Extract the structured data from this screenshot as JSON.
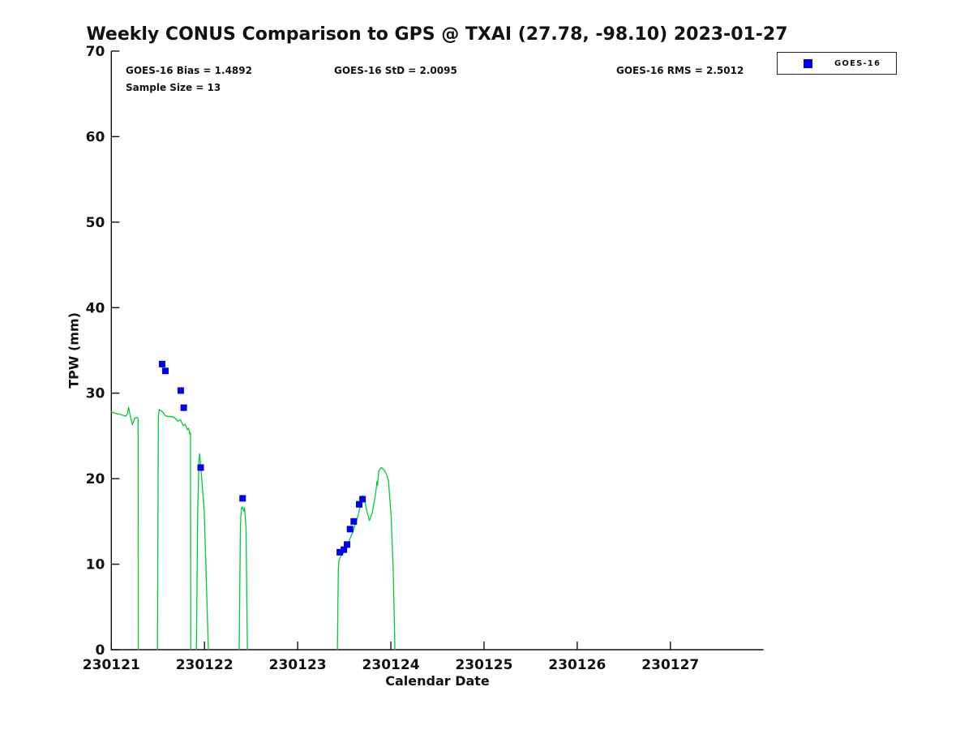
{
  "chart_data": {
    "type": "line",
    "title": "Weekly CONUS Comparison to GPS @ TXAI (27.78, -98.10) 2023-01-27",
    "xlabel": "Calendar Date",
    "ylabel": "TPW (mm)",
    "xlim": [
      230121,
      230128
    ],
    "ylim": [
      0,
      70
    ],
    "xticks": [
      230121,
      230122,
      230123,
      230124,
      230125,
      230126,
      230127
    ],
    "yticks": [
      0,
      10,
      20,
      30,
      40,
      50,
      60,
      70
    ],
    "grid": false,
    "legend_position": "top-right",
    "stats": {
      "bias": 1.4892,
      "std": 2.0095,
      "rms": 2.5012,
      "sample_size": 13
    },
    "series": [
      {
        "name": "GPS",
        "type": "line",
        "color": "#00cc33",
        "segments": [
          [
            [
              230121.0,
              27.8
            ],
            [
              230121.03,
              27.7
            ],
            [
              230121.061,
              27.6
            ],
            [
              230121.104,
              27.5
            ],
            [
              230121.157,
              27.3
            ],
            [
              230121.172,
              27.55
            ],
            [
              230121.185,
              28.35
            ],
            [
              230121.2,
              27.5
            ],
            [
              230121.226,
              26.3
            ],
            [
              230121.252,
              27.1
            ],
            [
              230121.28,
              27.15
            ],
            [
              230121.287,
              27.0
            ],
            [
              230121.29,
              0
            ]
          ],
          [
            [
              230121.495,
              0
            ],
            [
              230121.505,
              27.2
            ],
            [
              230121.513,
              28.1
            ],
            [
              230121.525,
              28.0
            ],
            [
              230121.553,
              27.8
            ],
            [
              230121.575,
              27.4
            ],
            [
              230121.597,
              27.3
            ],
            [
              230121.64,
              27.25
            ],
            [
              230121.67,
              27.2
            ],
            [
              230121.7,
              26.9
            ],
            [
              230121.713,
              26.7
            ],
            [
              230121.742,
              26.9
            ],
            [
              230121.771,
              26.2
            ],
            [
              230121.794,
              26.35
            ],
            [
              230121.815,
              25.7
            ],
            [
              230121.829,
              25.9
            ],
            [
              230121.843,
              25.2
            ],
            [
              230121.849,
              25.4
            ],
            [
              230121.853,
              0
            ]
          ],
          [
            [
              230121.913,
              0
            ],
            [
              230121.928,
              16.5
            ],
            [
              230121.941,
              22.2
            ],
            [
              230121.948,
              22.9
            ],
            [
              230121.961,
              21.3
            ],
            [
              230121.997,
              16.2
            ],
            [
              230122.042,
              0
            ]
          ],
          [
            [
              230122.372,
              0
            ],
            [
              230122.385,
              14.5
            ],
            [
              230122.396,
              16.5
            ],
            [
              230122.406,
              16.7
            ],
            [
              230122.42,
              16.2
            ],
            [
              230122.431,
              16.6
            ],
            [
              230122.446,
              14.0
            ],
            [
              230122.46,
              0
            ]
          ],
          [
            [
              230123.426,
              0
            ],
            [
              230123.437,
              9.5
            ],
            [
              230123.444,
              10.5
            ],
            [
              230123.467,
              11.0
            ],
            [
              230123.483,
              11.2
            ],
            [
              230123.502,
              11.4
            ],
            [
              230123.519,
              11.7
            ],
            [
              230123.539,
              12.3
            ],
            [
              230123.559,
              12.9
            ],
            [
              230123.574,
              13.3
            ],
            [
              230123.597,
              13.9
            ],
            [
              230123.626,
              14.9
            ],
            [
              230123.655,
              16.0
            ],
            [
              230123.678,
              17.1
            ],
            [
              230123.698,
              18.0
            ],
            [
              230123.713,
              17.8
            ],
            [
              230123.742,
              16.2
            ],
            [
              230123.771,
              15.1
            ],
            [
              230123.8,
              16.0
            ],
            [
              230123.829,
              17.8
            ],
            [
              230123.844,
              18.9
            ],
            [
              230123.851,
              19.7
            ],
            [
              230123.857,
              19.2
            ],
            [
              230123.87,
              20.9
            ],
            [
              230123.896,
              21.3
            ],
            [
              230123.93,
              21.0
            ],
            [
              230123.957,
              20.4
            ],
            [
              230123.974,
              19.8
            ],
            [
              230124.003,
              15.6
            ],
            [
              230124.026,
              9.2
            ],
            [
              230124.044,
              0
            ]
          ]
        ]
      },
      {
        "name": "GOES-16",
        "type": "scatter",
        "marker": "square",
        "marker_size": 8,
        "color": "#0000f0",
        "points": [
          [
            230121.545,
            33.4
          ],
          [
            230121.58,
            32.6
          ],
          [
            230121.745,
            30.3
          ],
          [
            230121.777,
            28.3
          ],
          [
            230121.959,
            21.3
          ],
          [
            230122.409,
            17.7
          ],
          [
            230123.452,
            11.4
          ],
          [
            230123.496,
            11.7
          ],
          [
            230123.53,
            12.3
          ],
          [
            230123.562,
            14.1
          ],
          [
            230123.602,
            15.0
          ],
          [
            230123.66,
            17.0
          ],
          [
            230123.696,
            17.6
          ]
        ]
      }
    ]
  },
  "annotations": {
    "bias": "GOES-16 Bias = 1.4892",
    "std": "GOES-16 StD = 2.0095",
    "rms": "GOES-16 RMS = 2.5012",
    "sample_size": "Sample Size = 13"
  },
  "legend": {
    "items": [
      {
        "label": "GOES-16",
        "marker": "square",
        "color": "#0000f0"
      }
    ]
  }
}
